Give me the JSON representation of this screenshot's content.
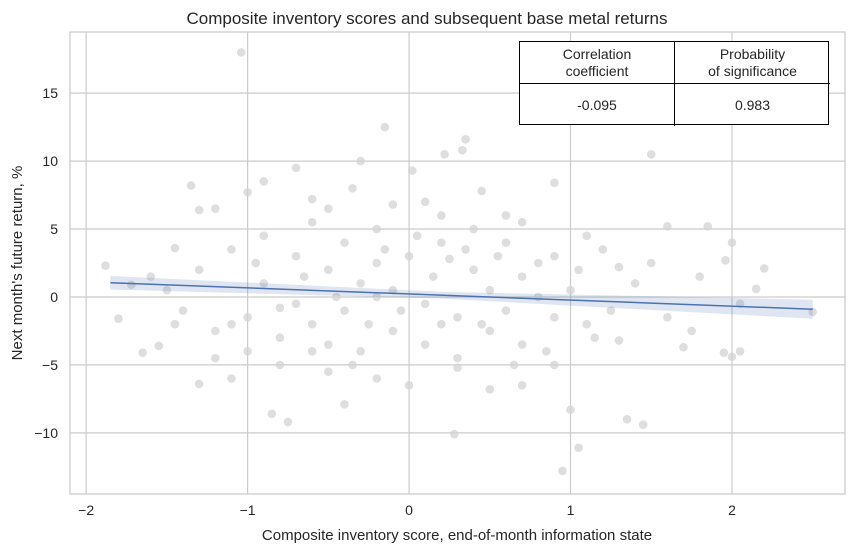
{
  "chart_data": {
    "type": "scatter",
    "title": "Composite inventory scores and subsequent base metal returns",
    "xlabel": "Composite inventory score, end-of-month information state",
    "ylabel": "Next month's future return, %",
    "xlim": [
      -2.1,
      2.7
    ],
    "ylim": [
      -14.5,
      19.5
    ],
    "xticks": [
      -2,
      -1,
      0,
      1,
      2
    ],
    "xtick_labels": [
      "−2",
      "−1",
      "0",
      "1",
      "2"
    ],
    "yticks": [
      -10,
      -5,
      0,
      5,
      10,
      15
    ],
    "ytick_labels": [
      "−10",
      "−5",
      "0",
      "5",
      "10",
      "15"
    ],
    "grid": true,
    "point_color": "#d3d3d3",
    "line_color": "#4c72b0",
    "regression": {
      "x": [
        -1.85,
        2.5
      ],
      "y": [
        1.05,
        -0.9
      ],
      "ci": 0.5
    },
    "points": [
      [
        -1.04,
        18
      ],
      [
        -1.35,
        8.2
      ],
      [
        -0.9,
        8.5
      ],
      [
        -0.7,
        9.5
      ],
      [
        -0.35,
        8
      ],
      [
        -0.3,
        10
      ],
      [
        -0.15,
        12.5
      ],
      [
        0.02,
        9.3
      ],
      [
        0.22,
        10.5
      ],
      [
        0.35,
        11.6
      ],
      [
        0.33,
        10.8
      ],
      [
        0.45,
        7.8
      ],
      [
        0.9,
        8.4
      ],
      [
        1.5,
        10.5
      ],
      [
        1.6,
        5.2
      ],
      [
        1.85,
        5.2
      ],
      [
        1.96,
        2.7
      ],
      [
        2.0,
        4.0
      ],
      [
        2.15,
        0.6
      ],
      [
        2.2,
        2.1
      ],
      [
        2.05,
        -0.5
      ],
      [
        1.95,
        -4.1
      ],
      [
        2.0,
        -4.4
      ],
      [
        2.05,
        -4.0
      ],
      [
        1.7,
        -3.7
      ],
      [
        1.45,
        -9.4
      ],
      [
        1.35,
        -9.0
      ],
      [
        1.05,
        -11.1
      ],
      [
        0.95,
        -12.8
      ],
      [
        1.0,
        -8.3
      ],
      [
        0.28,
        -10.1
      ],
      [
        -0.85,
        -8.6
      ],
      [
        -0.75,
        -9.2
      ],
      [
        -0.4,
        -7.9
      ],
      [
        -1.1,
        -6.0
      ],
      [
        -1.3,
        -6.4
      ],
      [
        -1.65,
        -4.1
      ],
      [
        -1.8,
        -1.6
      ],
      [
        -1.88,
        2.3
      ],
      [
        -1.72,
        0.9
      ],
      [
        -1.55,
        -3.6
      ],
      [
        -1.45,
        3.6
      ],
      [
        -1.3,
        6.4
      ],
      [
        -1.2,
        6.5
      ],
      [
        -1.0,
        7.7
      ],
      [
        -0.6,
        7.2
      ],
      [
        -0.5,
        6.5
      ],
      [
        -0.1,
        6.8
      ],
      [
        0.1,
        7.0
      ],
      [
        0.6,
        6.0
      ],
      [
        0.7,
        5.5
      ],
      [
        1.1,
        4.5
      ],
      [
        1.2,
        3.5
      ],
      [
        1.3,
        2.2
      ],
      [
        1.4,
        1.0
      ],
      [
        1.25,
        -1.0
      ],
      [
        1.15,
        -3.0
      ],
      [
        0.9,
        -5.0
      ],
      [
        0.7,
        -6.5
      ],
      [
        0.5,
        -6.8
      ],
      [
        0.3,
        -5.2
      ],
      [
        0.0,
        -6.5
      ],
      [
        -0.2,
        -6.0
      ],
      [
        -0.5,
        -5.5
      ],
      [
        -0.8,
        -5.0
      ],
      [
        -1.0,
        -4.0
      ],
      [
        -1.2,
        -2.5
      ],
      [
        -1.4,
        -1.0
      ],
      [
        -1.5,
        0.5
      ],
      [
        -1.3,
        2.0
      ],
      [
        -1.1,
        3.5
      ],
      [
        -0.9,
        4.5
      ],
      [
        -0.7,
        3.0
      ],
      [
        -0.5,
        2.0
      ],
      [
        -0.3,
        1.0
      ],
      [
        -0.1,
        0.5
      ],
      [
        0.1,
        -0.5
      ],
      [
        0.3,
        -1.5
      ],
      [
        0.5,
        -2.5
      ],
      [
        0.7,
        -3.5
      ],
      [
        0.9,
        -1.5
      ],
      [
        1.0,
        0.5
      ],
      [
        0.8,
        2.5
      ],
      [
        0.6,
        4.0
      ],
      [
        0.4,
        5.0
      ],
      [
        0.2,
        4.0
      ],
      [
        0.0,
        3.0
      ],
      [
        -0.2,
        2.5
      ],
      [
        -0.4,
        -1.0
      ],
      [
        -0.6,
        -2.0
      ],
      [
        -0.8,
        -3.0
      ],
      [
        -1.0,
        -1.5
      ],
      [
        -0.9,
        1.0
      ],
      [
        -0.7,
        -0.5
      ],
      [
        -0.5,
        -3.5
      ],
      [
        -0.3,
        -4.0
      ],
      [
        -0.1,
        -2.5
      ],
      [
        0.1,
        -3.5
      ],
      [
        0.3,
        -4.5
      ],
      [
        0.5,
        0.5
      ],
      [
        0.7,
        1.5
      ],
      [
        0.9,
        3.0
      ],
      [
        1.1,
        -2.0
      ],
      [
        -0.6,
        5.5
      ],
      [
        -0.2,
        5.0
      ],
      [
        0.2,
        6.0
      ],
      [
        0.4,
        2.0
      ],
      [
        -0.4,
        4.0
      ],
      [
        -0.8,
        -0.8
      ],
      [
        0.6,
        -1.0
      ],
      [
        1.6,
        -1.5
      ],
      [
        1.75,
        -2.5
      ],
      [
        2.5,
        -1.1
      ],
      [
        1.8,
        1.5
      ],
      [
        -1.6,
        1.5
      ],
      [
        -1.45,
        -2.0
      ],
      [
        -1.2,
        -4.5
      ],
      [
        0.15,
        1.5
      ],
      [
        -0.05,
        -1.0
      ],
      [
        0.25,
        2.8
      ],
      [
        -0.25,
        -2.0
      ],
      [
        0.45,
        -2.0
      ],
      [
        -0.45,
        0.0
      ],
      [
        0.05,
        4.5
      ],
      [
        -0.15,
        3.5
      ],
      [
        0.35,
        3.5
      ],
      [
        -0.65,
        1.5
      ],
      [
        0.65,
        -5.0
      ],
      [
        0.85,
        -4.0
      ],
      [
        -0.35,
        -5.0
      ],
      [
        1.3,
        -3.2
      ],
      [
        1.5,
        2.5
      ],
      [
        -1.1,
        -2.0
      ],
      [
        0.8,
        0.0
      ],
      [
        -0.2,
        0.0
      ],
      [
        0.2,
        -2.0
      ],
      [
        -0.6,
        -4.0
      ],
      [
        0.55,
        3.0
      ],
      [
        -0.95,
        2.5
      ],
      [
        1.05,
        2.0
      ]
    ]
  },
  "table": {
    "headers": [
      "Correlation\ncoefficient",
      "Probability\nof significance"
    ],
    "values": [
      "-0.095",
      "0.983"
    ]
  }
}
